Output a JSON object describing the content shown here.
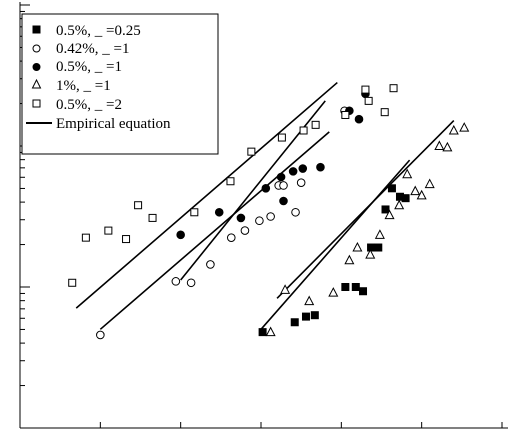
{
  "chart_data": {
    "type": "scatter",
    "title": "",
    "xlabel": "",
    "ylabel": "",
    "x_scale": "linear",
    "y_scale": "log",
    "grid": false,
    "legend_position": "top-left",
    "xlim": [
      0,
      6
    ],
    "ylim": [
      0,
      3
    ],
    "series": [
      {
        "name": "0.5%, _ =0.25",
        "marker": "square-filled",
        "points": [
          [
            3.02,
            0.68
          ],
          [
            3.42,
            0.75
          ],
          [
            3.56,
            0.79
          ],
          [
            3.67,
            0.8
          ],
          [
            4.05,
            1.0
          ],
          [
            4.18,
            1.0
          ],
          [
            4.27,
            0.97
          ],
          [
            4.37,
            1.28
          ],
          [
            4.46,
            1.28
          ],
          [
            4.55,
            1.55
          ],
          [
            4.63,
            1.7
          ],
          [
            4.73,
            1.64
          ],
          [
            4.8,
            1.63
          ]
        ]
      },
      {
        "name": "0.42%, _ =1",
        "marker": "circle-open",
        "points": [
          [
            1.0,
            0.66
          ],
          [
            1.94,
            1.04
          ],
          [
            2.13,
            1.03
          ],
          [
            2.37,
            1.16
          ],
          [
            2.63,
            1.35
          ],
          [
            2.8,
            1.4
          ],
          [
            2.98,
            1.47
          ],
          [
            3.12,
            1.5
          ],
          [
            3.22,
            1.72
          ],
          [
            3.28,
            1.72
          ],
          [
            3.43,
            1.53
          ],
          [
            3.5,
            1.74
          ],
          [
            4.04,
            2.25
          ]
        ]
      },
      {
        "name": "0.5%, _ =1",
        "marker": "circle-filled",
        "points": [
          [
            2.0,
            1.37
          ],
          [
            2.48,
            1.53
          ],
          [
            2.75,
            1.49
          ],
          [
            3.06,
            1.7
          ],
          [
            3.25,
            1.78
          ],
          [
            3.28,
            1.61
          ],
          [
            3.4,
            1.82
          ],
          [
            3.52,
            1.84
          ],
          [
            3.74,
            1.85
          ],
          [
            4.1,
            2.25
          ],
          [
            4.22,
            2.19
          ],
          [
            4.3,
            2.37
          ]
        ]
      },
      {
        "name": "1%, _ =1",
        "marker": "triangle-open",
        "points": [
          [
            3.12,
            0.68
          ],
          [
            3.3,
            0.98
          ],
          [
            3.6,
            0.9
          ],
          [
            3.9,
            0.96
          ],
          [
            4.1,
            1.19
          ],
          [
            4.2,
            1.28
          ],
          [
            4.36,
            1.23
          ],
          [
            4.48,
            1.37
          ],
          [
            4.6,
            1.51
          ],
          [
            4.72,
            1.58
          ],
          [
            4.82,
            1.8
          ],
          [
            4.92,
            1.68
          ],
          [
            5.0,
            1.65
          ],
          [
            5.1,
            1.73
          ],
          [
            5.22,
            2.0
          ],
          [
            5.32,
            1.99
          ],
          [
            5.4,
            2.11
          ],
          [
            5.53,
            2.13
          ]
        ]
      },
      {
        "name": "0.5%, _ =2",
        "marker": "square-open",
        "points": [
          [
            0.65,
            1.03
          ],
          [
            0.82,
            1.35
          ],
          [
            1.1,
            1.4
          ],
          [
            1.32,
            1.34
          ],
          [
            1.47,
            1.58
          ],
          [
            1.65,
            1.49
          ],
          [
            2.17,
            1.53
          ],
          [
            2.62,
            1.75
          ],
          [
            2.88,
            1.96
          ],
          [
            3.26,
            2.06
          ],
          [
            3.53,
            2.11
          ],
          [
            3.68,
            2.15
          ],
          [
            4.05,
            2.22
          ],
          [
            4.34,
            2.32
          ],
          [
            4.3,
            2.4
          ],
          [
            4.54,
            2.24
          ],
          [
            4.65,
            2.41
          ]
        ]
      },
      {
        "name": "Empirical equation",
        "marker": "line",
        "lines": [
          [
            [
              0.7,
              0.85
            ],
            [
              3.95,
              2.45
            ]
          ],
          [
            [
              1.0,
              0.7
            ],
            [
              3.85,
              2.1
            ]
          ],
          [
            [
              2.0,
              1.05
            ],
            [
              3.8,
              2.32
            ]
          ],
          [
            [
              3.0,
              0.7
            ],
            [
              4.85,
              1.9
            ]
          ],
          [
            [
              3.2,
              0.92
            ],
            [
              5.4,
              2.18
            ]
          ]
        ]
      }
    ]
  }
}
